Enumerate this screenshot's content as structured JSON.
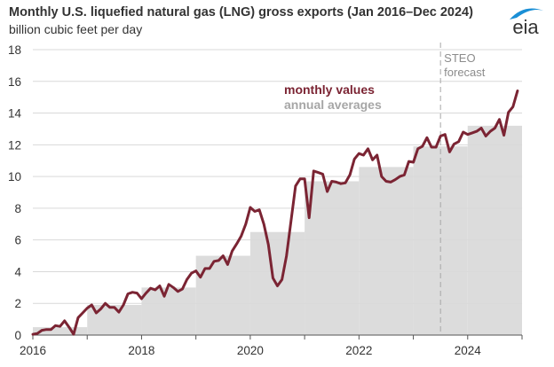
{
  "header": {
    "title": "Monthly U.S. liquefied natural gas (LNG) gross exports (Jan 2016–Dec 2024)",
    "subtitle": "billion cubic feet per day",
    "logo_text": "eia"
  },
  "colors": {
    "monthly": "#7b2433",
    "annual_fill": "#dcdcdc",
    "annual_text": "#a6a6a6",
    "grid": "#d9d9d9",
    "forecast_line": "#a6a6a6",
    "logo": "#1a8fd6"
  },
  "chart_data": {
    "type": "line",
    "title": "Monthly U.S. liquefied natural gas (LNG) gross exports (Jan 2016–Dec 2024)",
    "subtitle": "billion cubic feet per day",
    "xlabel": "",
    "ylabel": "billion cubic feet per day",
    "ylim": [
      0,
      18
    ],
    "xlim": [
      2016,
      2025
    ],
    "yticks": [
      0,
      2,
      4,
      6,
      8,
      10,
      12,
      14,
      16,
      18
    ],
    "ytick_labels": [
      "0",
      "2",
      "4",
      "6",
      "8",
      "10",
      "12",
      "14",
      "16",
      "18"
    ],
    "xticks": [
      2016,
      2017,
      2018,
      2019,
      2020,
      2021,
      2022,
      2023,
      2024,
      2025
    ],
    "xtick_labels": [
      "2016",
      "",
      "2018",
      "",
      "2020",
      "",
      "2022",
      "",
      "2024",
      ""
    ],
    "grid": true,
    "legend": [
      {
        "name": "monthly values",
        "placement": "top-center"
      },
      {
        "name": "annual averages",
        "placement": "top-center"
      }
    ],
    "annotations": [
      {
        "text": "STEO",
        "x": 2023.5
      },
      {
        "text": "forecast",
        "x": 2023.5
      }
    ],
    "forecast_start": 2023.5,
    "series": [
      {
        "name": "monthly values",
        "type": "line",
        "start": "2016-01",
        "values": [
          0.05,
          0.1,
          0.3,
          0.35,
          0.35,
          0.6,
          0.55,
          0.9,
          0.5,
          0.05,
          1.1,
          1.4,
          1.7,
          1.9,
          1.4,
          1.65,
          2.0,
          1.75,
          1.75,
          1.45,
          1.9,
          2.6,
          2.7,
          2.65,
          2.3,
          2.65,
          2.95,
          2.85,
          3.1,
          2.45,
          3.2,
          3.0,
          2.75,
          2.9,
          3.5,
          3.9,
          4.05,
          3.65,
          4.2,
          4.2,
          4.65,
          4.7,
          5.0,
          4.45,
          5.3,
          5.75,
          6.25,
          7.0,
          8.05,
          7.8,
          7.9,
          7.0,
          5.7,
          3.6,
          3.1,
          3.5,
          5.0,
          7.2,
          9.4,
          9.85,
          9.85,
          7.4,
          10.35,
          10.25,
          10.15,
          9.05,
          9.7,
          9.65,
          9.55,
          9.6,
          10.1,
          11.1,
          11.45,
          11.35,
          11.75,
          11.05,
          11.35,
          10.0,
          9.7,
          9.65,
          9.8,
          10.0,
          10.1,
          10.95,
          10.9,
          11.75,
          11.9,
          12.45,
          11.85,
          11.85,
          12.55,
          12.65,
          11.55,
          12.05,
          12.2,
          12.8,
          12.65,
          12.75,
          12.85,
          13.05,
          12.55,
          12.85,
          13.05,
          13.6,
          12.6,
          14.05,
          14.4,
          15.4
        ]
      },
      {
        "name": "annual averages",
        "type": "area-step",
        "years": [
          2016,
          2017,
          2018,
          2019,
          2020,
          2021,
          2022,
          2023,
          2024
        ],
        "values": [
          0.5,
          1.9,
          3.0,
          5.0,
          6.5,
          9.7,
          10.6,
          11.9,
          13.2
        ]
      }
    ]
  }
}
